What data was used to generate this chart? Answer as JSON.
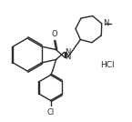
{
  "bg": "#ffffff",
  "lc": "#2a2a2a",
  "lw": 1.0,
  "fs": 6.0,
  "O": "O",
  "N": "N",
  "N_ring": "N",
  "Cl": "Cl",
  "HCl": "HCl",
  "methyl_label": "N"
}
